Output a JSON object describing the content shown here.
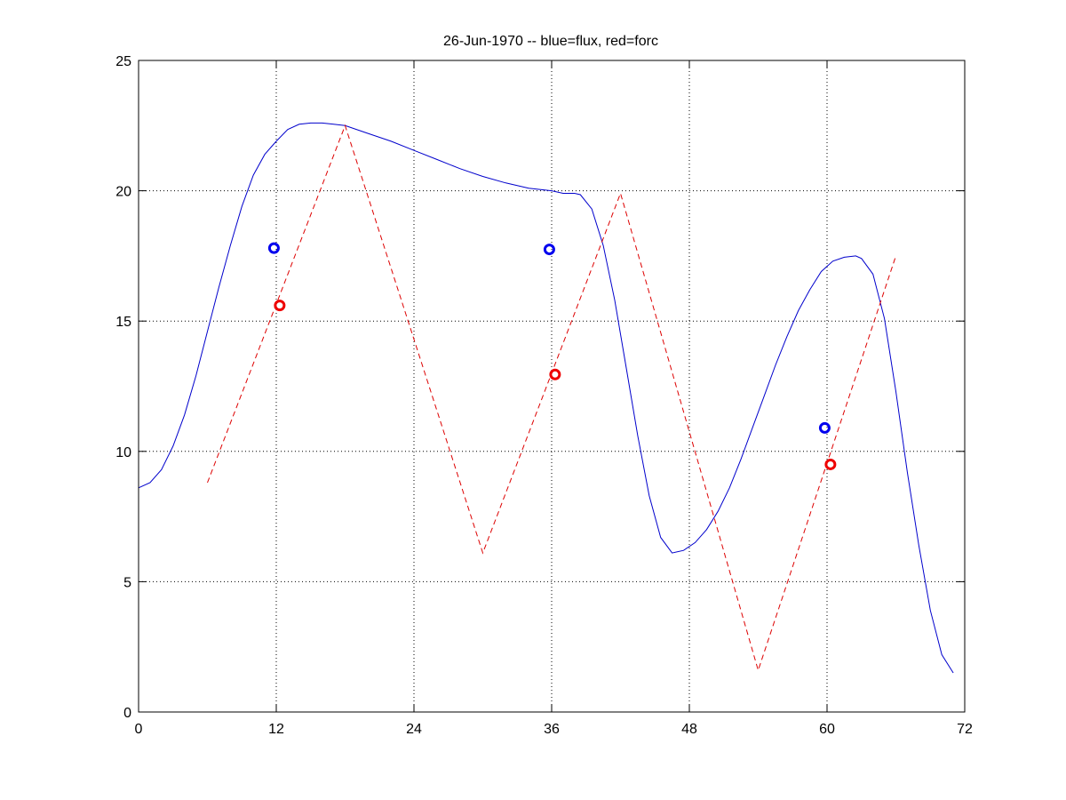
{
  "chart_data": {
    "type": "line",
    "title": "26-Jun-1970 -- blue=flux, red=forc",
    "xlabel": "",
    "ylabel": "",
    "xlim": [
      0,
      72
    ],
    "ylim": [
      0,
      25
    ],
    "xticks": [
      0,
      12,
      24,
      36,
      48,
      60,
      72
    ],
    "yticks": [
      0,
      5,
      10,
      15,
      20,
      25
    ],
    "grid": true,
    "series": [
      {
        "name": "flux",
        "color": "#0000cc",
        "style": "solid",
        "x": [
          0,
          1,
          2,
          3,
          4,
          5,
          6,
          7,
          8,
          9,
          10,
          11,
          12,
          13,
          14,
          15,
          16,
          17,
          18,
          20,
          22,
          24,
          26,
          28,
          30,
          32,
          34,
          36,
          37,
          38,
          38.5,
          39.5,
          40.5,
          41.5,
          42.5,
          43.5,
          44.5,
          45.5,
          46.5,
          47.5,
          48.5,
          49.5,
          50.5,
          51.5,
          52.5,
          53.5,
          54.5,
          55.5,
          56.5,
          57.5,
          58.5,
          59.5,
          60.5,
          61.5,
          62.5,
          63,
          64,
          65,
          66,
          67,
          68,
          69,
          70,
          71
        ],
        "y": [
          8.6,
          8.8,
          9.3,
          10.2,
          11.4,
          12.9,
          14.6,
          16.3,
          17.9,
          19.4,
          20.6,
          21.4,
          21.9,
          22.35,
          22.55,
          22.6,
          22.6,
          22.55,
          22.5,
          22.2,
          21.9,
          21.55,
          21.2,
          20.85,
          20.55,
          20.3,
          20.1,
          20.0,
          19.9,
          19.9,
          19.85,
          19.3,
          17.9,
          15.8,
          13.2,
          10.6,
          8.3,
          6.7,
          6.1,
          6.2,
          6.5,
          7.0,
          7.7,
          8.6,
          9.7,
          10.9,
          12.1,
          13.3,
          14.4,
          15.4,
          16.2,
          16.9,
          17.3,
          17.45,
          17.5,
          17.4,
          16.8,
          15.1,
          12.3,
          9.2,
          6.4,
          3.9,
          2.2,
          1.5
        ]
      },
      {
        "name": "forc",
        "color": "#dd0000",
        "style": "dashed",
        "x": [
          6,
          18,
          30,
          42,
          54,
          66
        ],
        "y": [
          8.8,
          22.5,
          6.1,
          19.9,
          1.6,
          17.5
        ]
      }
    ],
    "markers": [
      {
        "series": "flux",
        "color": "#0000ee",
        "x": 11.8,
        "y": 17.8
      },
      {
        "series": "flux",
        "color": "#0000ee",
        "x": 35.8,
        "y": 17.75
      },
      {
        "series": "flux",
        "color": "#0000ee",
        "x": 59.8,
        "y": 10.9
      },
      {
        "series": "forc",
        "color": "#ee0000",
        "x": 12.3,
        "y": 15.6
      },
      {
        "series": "forc",
        "color": "#ee0000",
        "x": 36.3,
        "y": 12.95
      },
      {
        "series": "forc",
        "color": "#ee0000",
        "x": 60.3,
        "y": 9.5
      }
    ]
  }
}
